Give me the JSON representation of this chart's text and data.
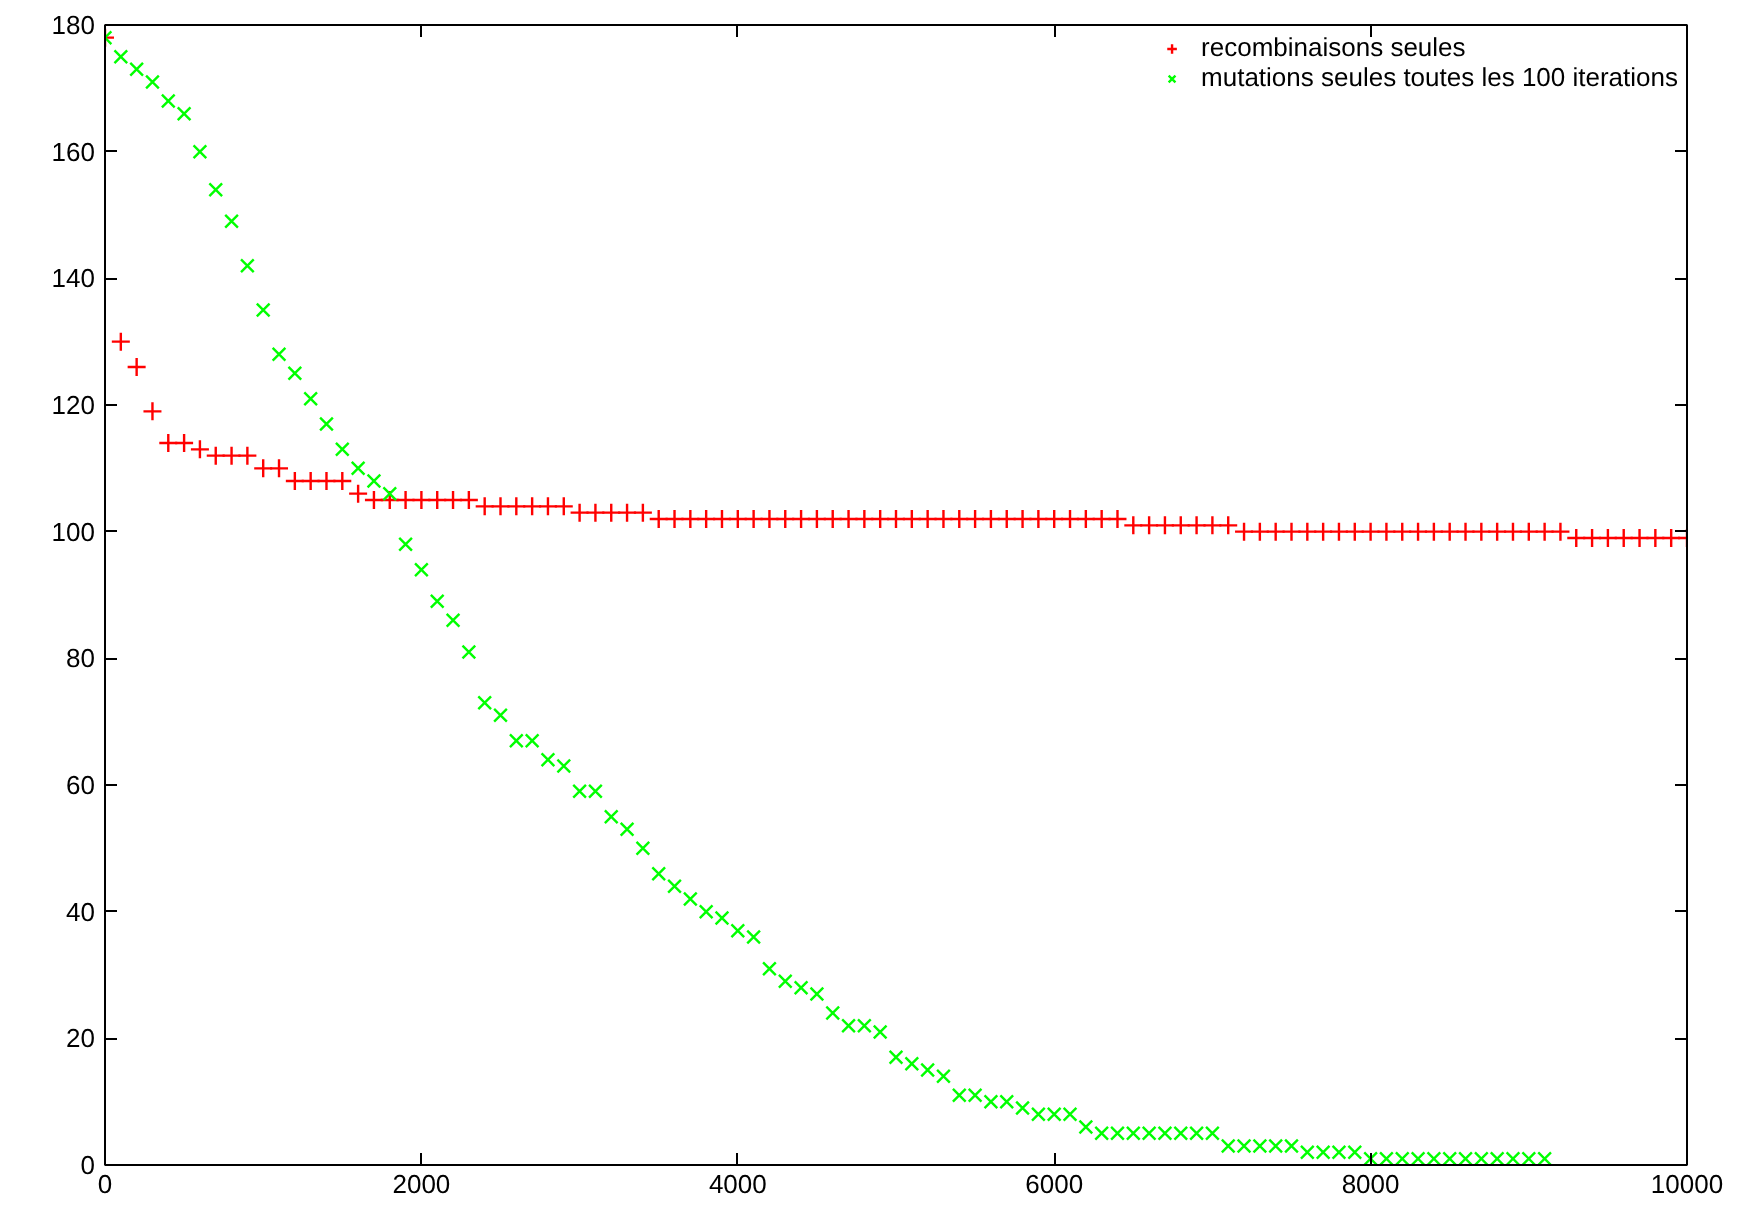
{
  "chart_data": {
    "type": "scatter",
    "xlim": [
      0,
      10000
    ],
    "ylim": [
      0,
      180
    ],
    "xticks": [
      0,
      2000,
      4000,
      6000,
      8000,
      10000
    ],
    "yticks": [
      0,
      20,
      40,
      60,
      80,
      100,
      120,
      140,
      160,
      180
    ],
    "grid": false,
    "legend": "top right",
    "series": [
      {
        "name": "recombinaisons seules",
        "color": "#ff0000",
        "marker": "cross",
        "x": [
          0,
          100,
          200,
          300,
          400,
          500,
          600,
          700,
          800,
          900,
          1000,
          1100,
          1200,
          1300,
          1400,
          1500,
          1600,
          1700,
          1800,
          1900,
          2000,
          2100,
          2200,
          2300,
          2400,
          2500,
          2600,
          2700,
          2800,
          2900,
          3000,
          3100,
          3200,
          3300,
          3400,
          3500,
          3600,
          3700,
          3800,
          3900,
          4000,
          4100,
          4200,
          4300,
          4400,
          4500,
          4600,
          4700,
          4800,
          4900,
          5000,
          5100,
          5200,
          5300,
          5400,
          5500,
          5600,
          5700,
          5800,
          5900,
          6000,
          6100,
          6200,
          6300,
          6400,
          6500,
          6600,
          6700,
          6800,
          6900,
          7000,
          7100,
          7200,
          7300,
          7400,
          7500,
          7600,
          7700,
          7800,
          7900,
          8000,
          8100,
          8200,
          8300,
          8400,
          8500,
          8600,
          8700,
          8800,
          8900,
          9000,
          9100,
          9200,
          9300,
          9400,
          9500,
          9600,
          9700,
          9800,
          9900,
          10000
        ],
        "values": [
          178,
          130,
          126,
          119,
          114,
          114,
          113,
          112,
          112,
          112,
          110,
          110,
          108,
          108,
          108,
          108,
          106,
          105,
          105,
          105,
          105,
          105,
          105,
          105,
          104,
          104,
          104,
          104,
          104,
          104,
          103,
          103,
          103,
          103,
          103,
          102,
          102,
          102,
          102,
          102,
          102,
          102,
          102,
          102,
          102,
          102,
          102,
          102,
          102,
          102,
          102,
          102,
          102,
          102,
          102,
          102,
          102,
          102,
          102,
          102,
          102,
          102,
          102,
          102,
          102,
          101,
          101,
          101,
          101,
          101,
          101,
          101,
          100,
          100,
          100,
          100,
          100,
          100,
          100,
          100,
          100,
          100,
          100,
          100,
          100,
          100,
          100,
          100,
          100,
          100,
          100,
          100,
          100,
          99,
          99,
          99,
          99,
          99,
          99,
          99,
          99
        ]
      },
      {
        "name": "mutations seules toutes les 100 iterations",
        "color": "#00ff00",
        "marker": "x",
        "x": [
          0,
          100,
          200,
          300,
          400,
          500,
          600,
          700,
          800,
          900,
          1000,
          1100,
          1200,
          1300,
          1400,
          1500,
          1600,
          1700,
          1800,
          1900,
          2000,
          2100,
          2200,
          2300,
          2400,
          2500,
          2600,
          2700,
          2800,
          2900,
          3000,
          3100,
          3200,
          3300,
          3400,
          3500,
          3600,
          3700,
          3800,
          3900,
          4000,
          4100,
          4200,
          4300,
          4400,
          4500,
          4600,
          4700,
          4800,
          4900,
          5000,
          5100,
          5200,
          5300,
          5400,
          5500,
          5600,
          5700,
          5800,
          5900,
          6000,
          6100,
          6200,
          6300,
          6400,
          6500,
          6600,
          6700,
          6800,
          6900,
          7000,
          7100,
          7200,
          7300,
          7400,
          7500,
          7600,
          7700,
          7800,
          7900,
          8000,
          8100,
          8200,
          8300,
          8400,
          8500,
          8600,
          8700,
          8800,
          8900,
          9000,
          9100
        ],
        "values": [
          178,
          175,
          173,
          171,
          168,
          166,
          160,
          154,
          149,
          142,
          135,
          128,
          125,
          121,
          117,
          113,
          110,
          108,
          106,
          98,
          94,
          89,
          86,
          81,
          73,
          71,
          67,
          67,
          64,
          63,
          59,
          59,
          55,
          53,
          50,
          46,
          44,
          42,
          40,
          39,
          37,
          36,
          31,
          29,
          28,
          27,
          24,
          22,
          22,
          21,
          17,
          16,
          15,
          14,
          11,
          11,
          10,
          10,
          9,
          8,
          8,
          8,
          6,
          5,
          5,
          5,
          5,
          5,
          5,
          5,
          5,
          3,
          3,
          3,
          3,
          3,
          2,
          2,
          2,
          2,
          1,
          1,
          1,
          1,
          1,
          1,
          1,
          1,
          1,
          1,
          1,
          1
        ]
      }
    ]
  }
}
